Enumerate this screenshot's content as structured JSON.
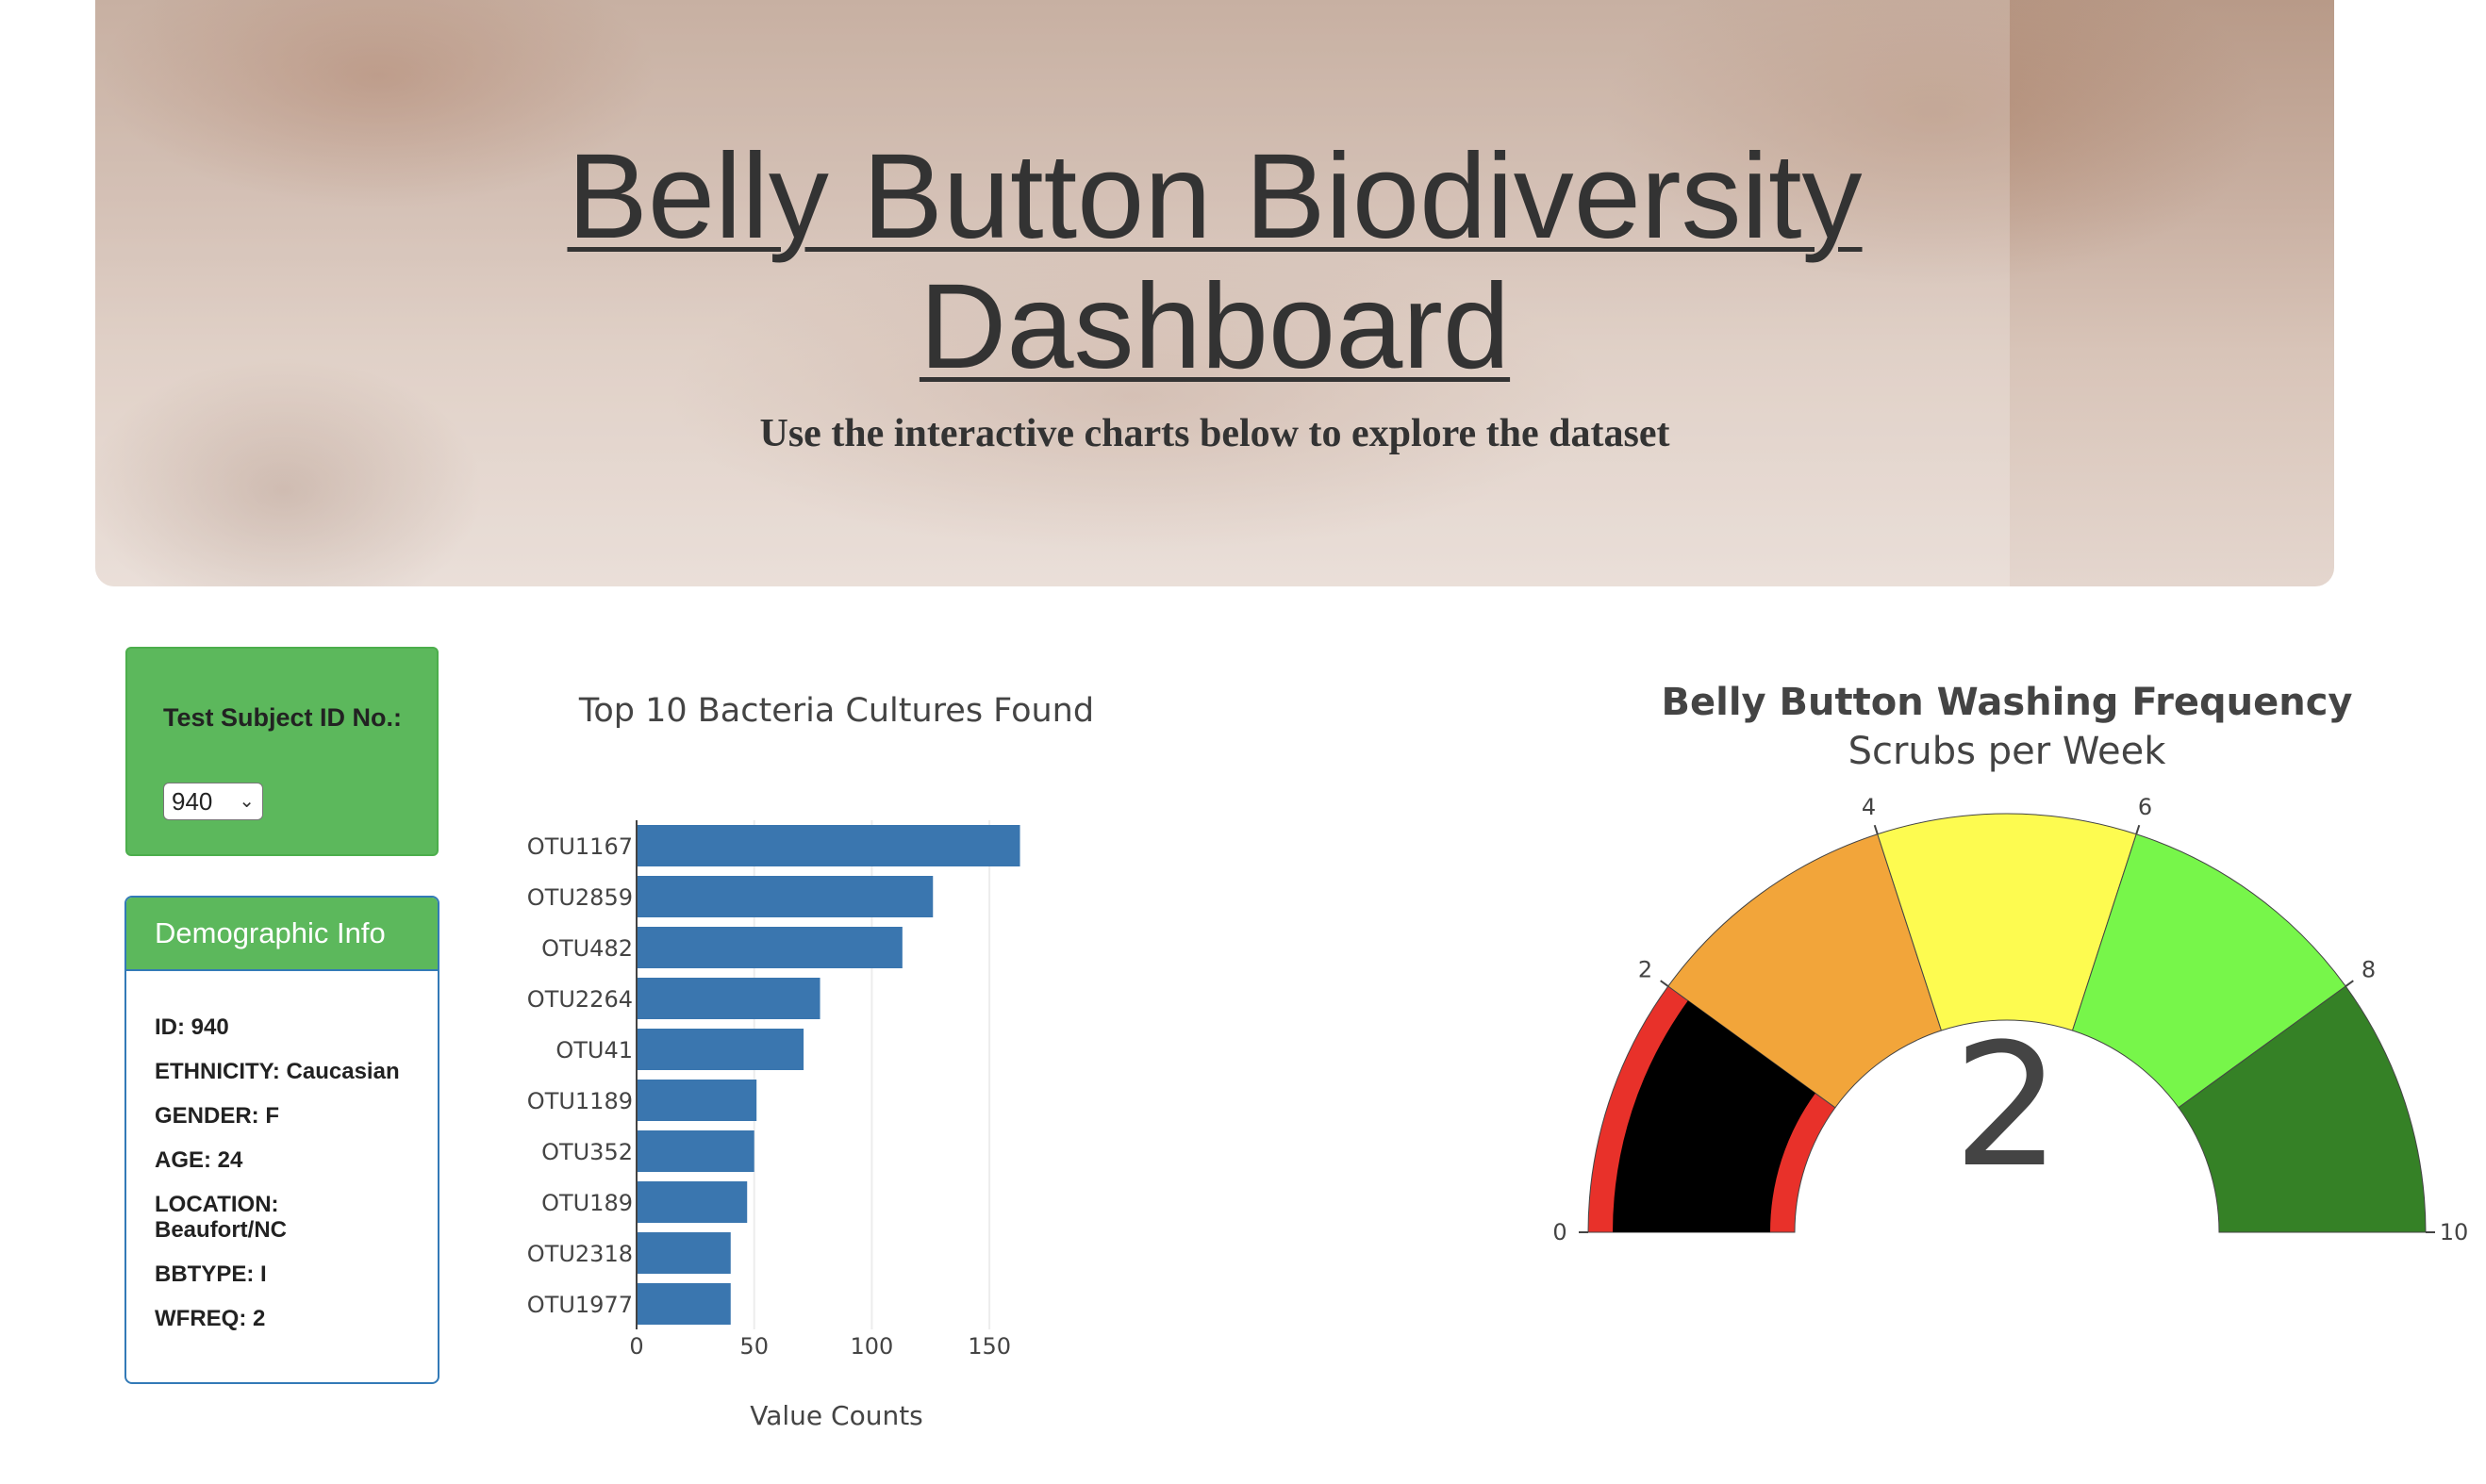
{
  "header": {
    "title_line1": "Belly Button Biodiversity",
    "title_line2": "Dashboard",
    "subtitle": "Use the interactive charts below to explore the dataset"
  },
  "selector": {
    "label": "Test Subject ID No.:",
    "selected": "940"
  },
  "demographics": {
    "title": "Demographic Info",
    "rows": [
      "ID: 940",
      "ETHNICITY: Caucasian",
      "GENDER: F",
      "AGE: 24",
      "LOCATION: Beaufort/NC",
      "BBTYPE: I",
      "WFREQ: 2"
    ]
  },
  "colors": {
    "bar": "#3a76af",
    "panel_green": "#5cb85c",
    "panel_border": "#337ab7"
  },
  "chart_data": [
    {
      "type": "bar",
      "orientation": "horizontal",
      "title": "Top 10 Bacteria Cultures Found",
      "xlabel": "Value Counts",
      "categories": [
        "OTU1167",
        "OTU2859",
        "OTU482",
        "OTU2264",
        "OTU41",
        "OTU1189",
        "OTU352",
        "OTU189",
        "OTU2318",
        "OTU1977"
      ],
      "values": [
        163,
        126,
        113,
        78,
        71,
        51,
        50,
        47,
        40,
        40
      ],
      "xlim": [
        0,
        170
      ],
      "xticks": [
        0,
        50,
        100,
        150
      ],
      "grid": true
    },
    {
      "type": "gauge",
      "title": "Belly Button Washing Frequency",
      "subtitle": "Scrubs per Week",
      "value": 2,
      "range": [
        0,
        10
      ],
      "ticks": [
        0,
        2,
        4,
        6,
        8,
        10
      ],
      "steps": [
        {
          "range": [
            0,
            2
          ],
          "color": "#e8312a"
        },
        {
          "range": [
            2,
            4
          ],
          "color": "#f2a53a"
        },
        {
          "range": [
            4,
            6
          ],
          "color": "#fdfb50"
        },
        {
          "range": [
            6,
            8
          ],
          "color": "#77f64a"
        },
        {
          "range": [
            8,
            10
          ],
          "color": "#358126"
        }
      ],
      "bar_color": "#000000"
    }
  ]
}
